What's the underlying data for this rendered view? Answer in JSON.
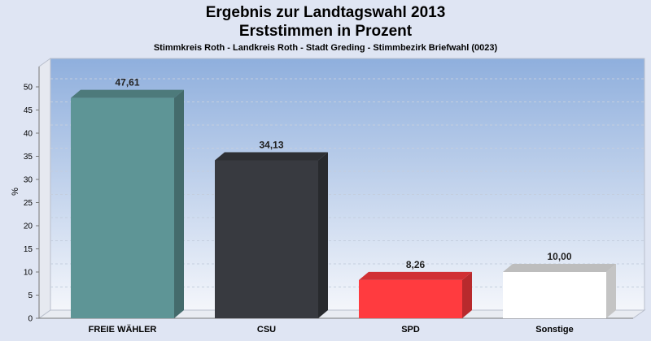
{
  "chart_data": {
    "type": "bar",
    "title_line1": "Ergebnis zur Landtagswahl 2013",
    "title_line2": "Erststimmen in Prozent",
    "subtitle": "Stimmkreis Roth - Landkreis Roth - Stadt Greding - Stimmbezirk Briefwahl (0023)",
    "ylabel": "%",
    "xlabel": "",
    "ylim": [
      0,
      55
    ],
    "yticks": [
      0,
      5,
      10,
      15,
      20,
      25,
      30,
      35,
      40,
      45,
      50
    ],
    "grid": true,
    "categories": [
      "FREIE WÄHLER",
      "CSU",
      "SPD",
      "Sonstige"
    ],
    "values": [
      47.61,
      34.13,
      8.26,
      10.0
    ],
    "value_labels": [
      "47,61",
      "34,13",
      "8,26",
      "10,00"
    ],
    "colors": [
      "#5e9596",
      "#383a40",
      "#ff3b3f",
      "#ffffff"
    ]
  }
}
